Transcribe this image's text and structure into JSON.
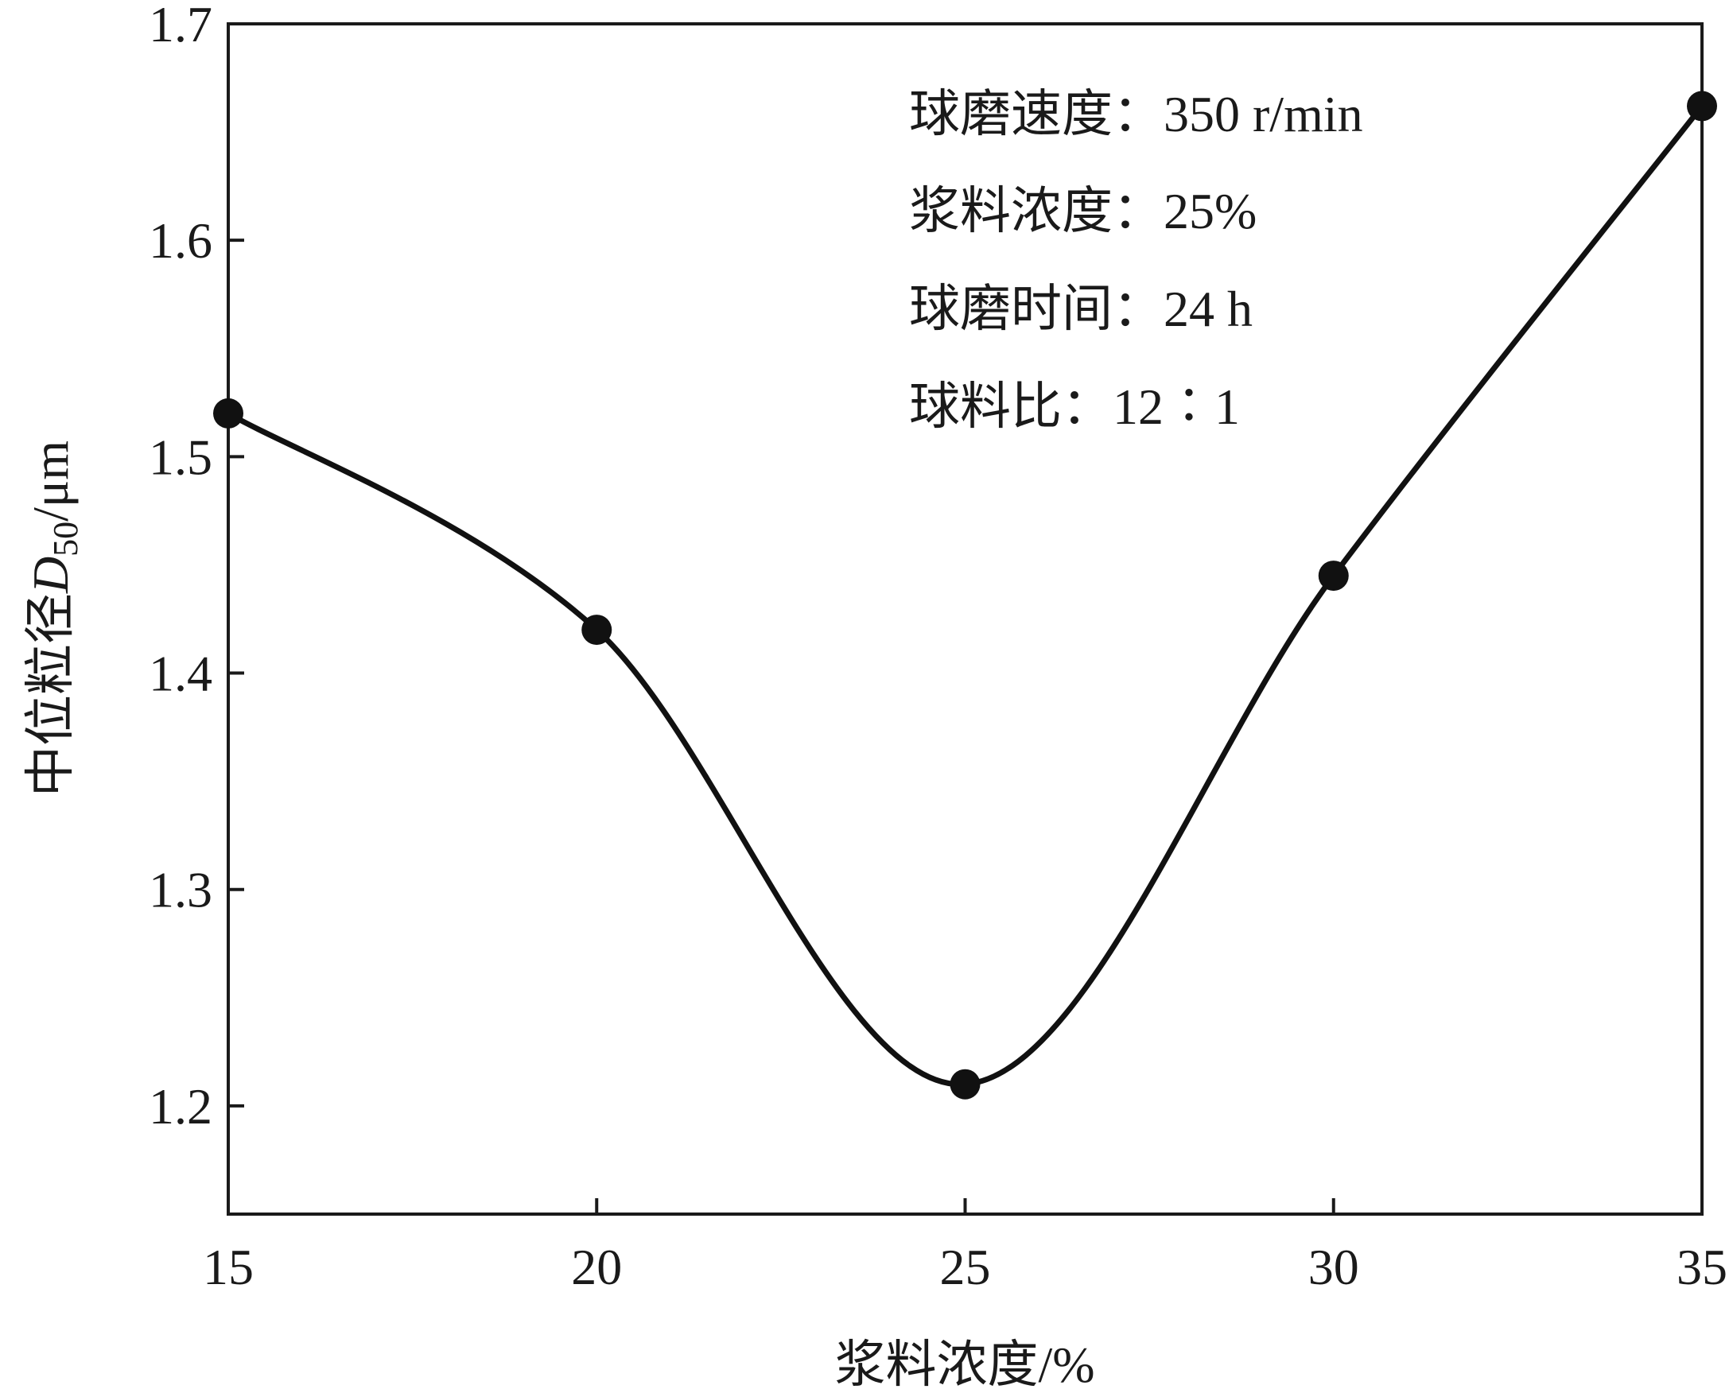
{
  "chart_data": {
    "type": "line",
    "xlabel": "浆料浓度/%",
    "ylabel": "中位粒径D50/μm",
    "ylabel_parts": {
      "main": "中位粒径",
      "symbol": "D",
      "subscript": "50",
      "unit": "/μm"
    },
    "x": [
      15,
      20,
      25,
      30,
      35
    ],
    "series": [
      {
        "values": [
          1.52,
          1.42,
          1.21,
          1.445,
          1.662
        ]
      }
    ],
    "xlim": [
      15,
      35
    ],
    "ylim": [
      1.15,
      1.7
    ],
    "xticks": [
      "15",
      "20",
      "25",
      "30",
      "35"
    ],
    "yticks": [
      "1.2",
      "1.3",
      "1.4",
      "1.5",
      "1.6",
      "1.7"
    ],
    "grid": false,
    "annotations": [
      "球磨速度：350 r/min",
      "浆料浓度：25%",
      "球磨时间：24 h",
      "球料比：12∶1"
    ],
    "colors": {
      "line": "#111111",
      "marker": "#111111",
      "axes": "#1a1a1a"
    }
  }
}
